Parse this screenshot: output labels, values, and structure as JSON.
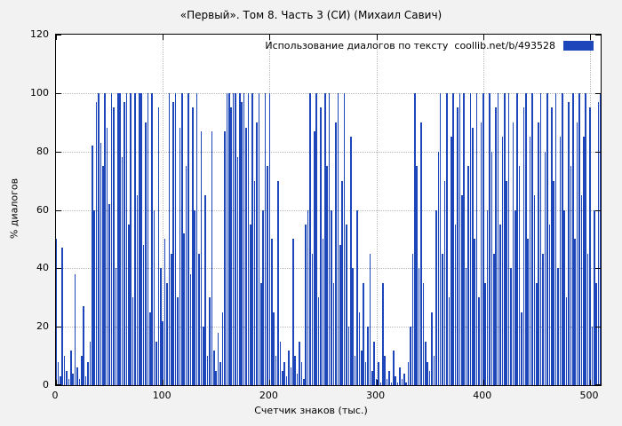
{
  "title": "«Первый». Том 8. Часть 3 (СИ) (Михаил Савич)",
  "legend": {
    "label": "Использование диалогов по тексту  coollib.net/b/493528",
    "swatch_color": "#1e46bb"
  },
  "axes": {
    "x_label": "Счетчик знаков (тыс.)",
    "y_label": "% диалогов",
    "x_ticks": [
      0,
      100,
      200,
      300,
      400,
      500
    ],
    "y_ticks": [
      0,
      20,
      40,
      60,
      80,
      100,
      120
    ]
  },
  "chart_data": {
    "type": "bar",
    "title": "«Первый». Том 8. Часть 3 (СИ) (Михаил Савич)",
    "xlabel": "Счетчик знаков (тыс.)",
    "ylabel": "% диалогов",
    "legend": "Использование диалогов по тексту coollib.net/b/493528",
    "legend_position": "top-right",
    "xlim": [
      0,
      510
    ],
    "ylim": [
      0,
      120
    ],
    "grid": true,
    "bar_color": "#1e46bb",
    "x_start": 0,
    "x_step": 2,
    "values": [
      50,
      8,
      3,
      47,
      10,
      5,
      2,
      12,
      4,
      38,
      6,
      2,
      10,
      27,
      3,
      8,
      15,
      82,
      60,
      97,
      100,
      83,
      75,
      100,
      88,
      62,
      100,
      95,
      40,
      100,
      100,
      78,
      97,
      100,
      55,
      100,
      30,
      100,
      65,
      100,
      100,
      48,
      90,
      100,
      25,
      100,
      60,
      15,
      95,
      40,
      22,
      50,
      35,
      100,
      45,
      97,
      100,
      30,
      88,
      100,
      52,
      75,
      100,
      38,
      95,
      60,
      100,
      45,
      87,
      20,
      65,
      10,
      30,
      87,
      12,
      5,
      18,
      8,
      25,
      87,
      100,
      100,
      95,
      100,
      100,
      78,
      100,
      97,
      100,
      88,
      100,
      55,
      100,
      70,
      90,
      100,
      35,
      60,
      100,
      75,
      100,
      50,
      25,
      10,
      70,
      15,
      5,
      8,
      3,
      12,
      6,
      50,
      10,
      4,
      15,
      8,
      2,
      55,
      60,
      100,
      45,
      87,
      100,
      30,
      95,
      50,
      100,
      75,
      100,
      60,
      35,
      90,
      100,
      48,
      70,
      100,
      55,
      20,
      85,
      40,
      10,
      60,
      25,
      12,
      35,
      8,
      20,
      45,
      5,
      15,
      2,
      8,
      1,
      35,
      10,
      2,
      5,
      1,
      12,
      3,
      1,
      6,
      2,
      4,
      1,
      8,
      20,
      45,
      100,
      75,
      40,
      90,
      35,
      15,
      8,
      5,
      25,
      10,
      60,
      80,
      100,
      45,
      70,
      100,
      30,
      85,
      100,
      55,
      95,
      100,
      65,
      100,
      40,
      75,
      100,
      88,
      50,
      100,
      30,
      90,
      100,
      35,
      60,
      100,
      80,
      45,
      95,
      100,
      55,
      85,
      100,
      70,
      100,
      40,
      90,
      60,
      100,
      75,
      25,
      95,
      100,
      50,
      85,
      100,
      65,
      35,
      90,
      100,
      45,
      80,
      100,
      55,
      95,
      70,
      100,
      40,
      85,
      100,
      60,
      30,
      97,
      75,
      100,
      50,
      90,
      100,
      65,
      85,
      100,
      45,
      95,
      20,
      60,
      35,
      97,
      100
    ]
  }
}
